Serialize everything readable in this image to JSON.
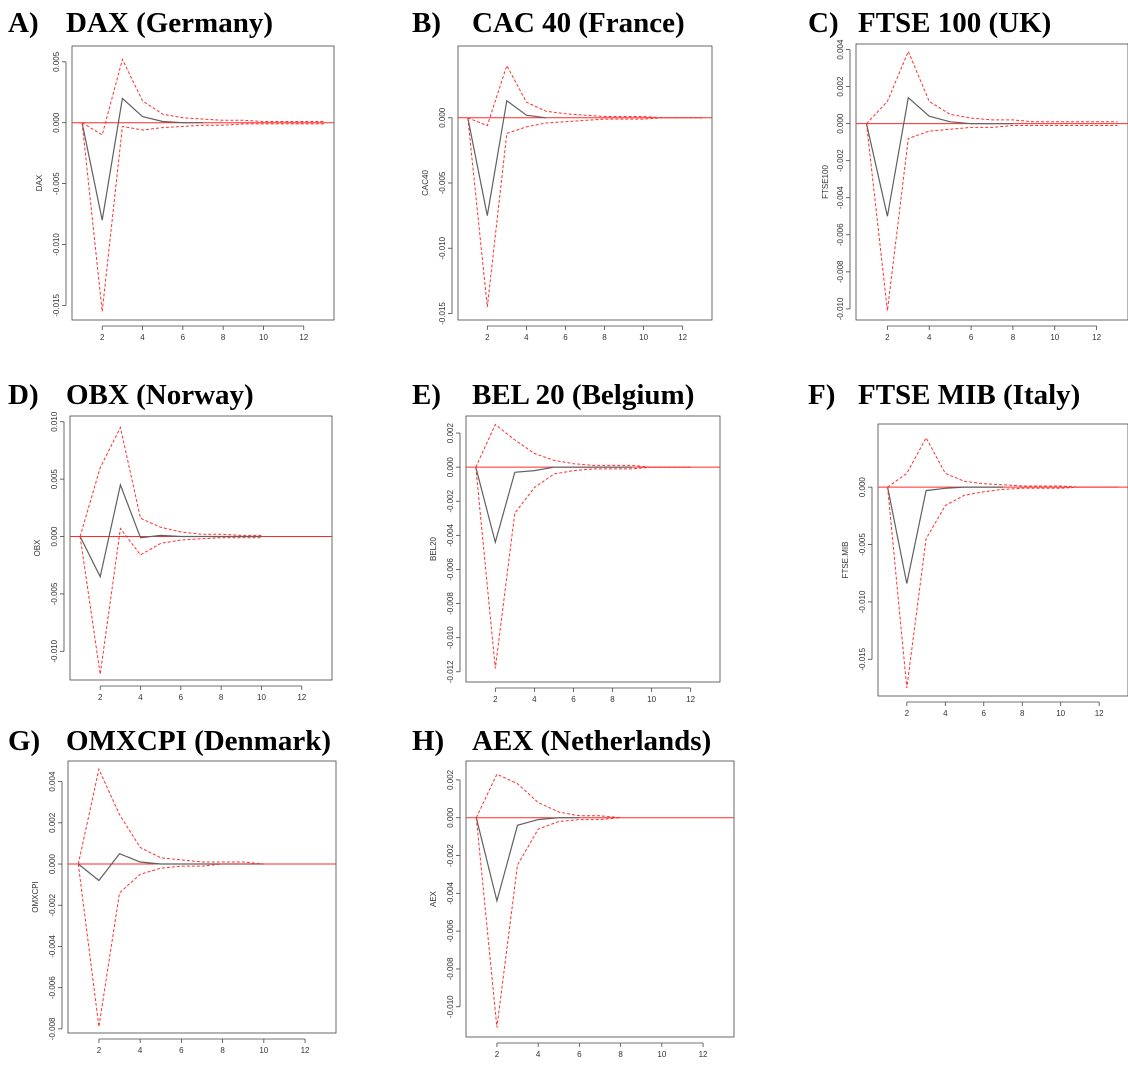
{
  "figure": {
    "panels": [
      {
        "letter": "A)",
        "title": "DAX (Germany)"
      },
      {
        "letter": "B)",
        "title": "CAC 40 (France)"
      },
      {
        "letter": "C)",
        "title": "FTSE 100 (UK)"
      },
      {
        "letter": "D)",
        "title": "OBX (Norway)"
      },
      {
        "letter": "E)",
        "title": "BEL 20 (Belgium)"
      },
      {
        "letter": "F)",
        "title": "FTSE MIB (Italy)"
      },
      {
        "letter": "G)",
        "title": "OMXCPI (Denmark)"
      },
      {
        "letter": "H)",
        "title": "AEX (Netherlands)"
      }
    ]
  },
  "colors": {
    "response": "#606060",
    "band": "#ff3030",
    "zero_line": "#ff2a2a",
    "frame": "#444444"
  },
  "chart_data": [
    {
      "type": "line",
      "title": "DAX (Germany)",
      "ylabel": "DAX",
      "xlabel": "",
      "xlim": [
        0.5,
        13.5
      ],
      "ylim": [
        -0.0162,
        0.0063
      ],
      "x_ticks": [
        2,
        4,
        6,
        8,
        10,
        12
      ],
      "y_ticks": [
        0.005,
        0.0,
        -0.005,
        -0.01,
        -0.015
      ],
      "y_tick_labels": [
        "0.005",
        "0.000",
        "-0.005",
        "-0.010",
        "-0.015"
      ],
      "zero_line": true,
      "grid": false,
      "x": [
        1,
        2,
        3,
        4,
        5,
        6,
        7,
        8,
        9,
        10,
        11,
        12,
        13
      ],
      "series": [
        {
          "role": "response",
          "values": [
            0,
            -0.008,
            0.002,
            0.0005,
            0.0001,
            0.0,
            0.0,
            null,
            null,
            null,
            null,
            null,
            null
          ]
        },
        {
          "role": "upper",
          "values": [
            0,
            -0.001,
            0.0052,
            0.0018,
            0.0007,
            0.0004,
            0.0003,
            0.0002,
            0.0002,
            0.0001,
            0.0001,
            0.0001,
            0.0001
          ]
        },
        {
          "role": "lower",
          "values": [
            0,
            -0.0155,
            -0.0003,
            -0.0006,
            -0.0004,
            -0.0003,
            -0.0002,
            -0.0002,
            -0.0001,
            -0.0001,
            -0.0001,
            -0.0001,
            -0.0001
          ]
        }
      ]
    },
    {
      "type": "line",
      "title": "CAC 40 (France)",
      "ylabel": "CAC40",
      "xlabel": "",
      "xlim": [
        0.5,
        13.5
      ],
      "ylim": [
        -0.0155,
        0.0055
      ],
      "x_ticks": [
        2,
        4,
        6,
        8,
        10,
        12
      ],
      "y_ticks": [
        0.0,
        -0.005,
        -0.01,
        -0.015
      ],
      "y_tick_labels": [
        "0.000",
        "-0.005",
        "-0.010",
        "-0.015"
      ],
      "zero_line": true,
      "grid": false,
      "x": [
        1,
        2,
        3,
        4,
        5,
        6,
        7,
        8,
        9,
        10,
        11,
        12,
        13
      ],
      "series": [
        {
          "role": "response",
          "values": [
            0,
            -0.0075,
            0.0013,
            0.0002,
            0.0,
            null,
            null,
            null,
            null,
            null,
            null,
            null,
            null
          ]
        },
        {
          "role": "upper",
          "values": [
            0,
            -0.0006,
            0.004,
            0.0012,
            0.0005,
            0.0003,
            0.0002,
            0.0001,
            0.0001,
            0.0001,
            0.0,
            0.0,
            0.0
          ]
        },
        {
          "role": "lower",
          "values": [
            0,
            -0.0145,
            -0.0012,
            -0.0007,
            -0.0004,
            -0.0003,
            -0.0002,
            -0.0001,
            -0.0001,
            -0.0001,
            0.0,
            0.0,
            0.0
          ]
        }
      ]
    },
    {
      "type": "line",
      "title": "FTSE 100 (UK)",
      "ylabel": "FTSE100",
      "xlabel": "",
      "xlim": [
        0.5,
        13.5
      ],
      "ylim": [
        -0.0106,
        0.0043
      ],
      "x_ticks": [
        2,
        4,
        6,
        8,
        10,
        12
      ],
      "y_ticks": [
        0.004,
        0.002,
        0.0,
        -0.002,
        -0.004,
        -0.006,
        -0.008,
        -0.01
      ],
      "y_tick_labels": [
        "0.004",
        "0.002",
        "0.000",
        "-0.002",
        "-0.004",
        "-0.006",
        "-0.008",
        "-0.010"
      ],
      "zero_line": true,
      "grid": false,
      "x": [
        1,
        2,
        3,
        4,
        5,
        6,
        7,
        8,
        9,
        10,
        11,
        12,
        13
      ],
      "series": [
        {
          "role": "response",
          "values": [
            0,
            -0.005,
            0.0014,
            0.0004,
            0.0001,
            0.0,
            0.0,
            0.0,
            null,
            null,
            null,
            null,
            null
          ]
        },
        {
          "role": "upper",
          "values": [
            0,
            0.0012,
            0.0039,
            0.0012,
            0.0005,
            0.0003,
            0.0002,
            0.0002,
            0.0001,
            0.0001,
            0.0001,
            0.0001,
            0.0001
          ]
        },
        {
          "role": "lower",
          "values": [
            0,
            -0.0101,
            -0.0008,
            -0.0004,
            -0.0003,
            -0.0002,
            -0.0002,
            -0.0001,
            -0.0001,
            -0.0001,
            -0.0001,
            -0.0001,
            -0.0001
          ]
        }
      ]
    },
    {
      "type": "line",
      "title": "OBX (Norway)",
      "ylabel": "OBX",
      "xlabel": "",
      "xlim": [
        0.5,
        13.5
      ],
      "ylim": [
        -0.0125,
        0.0105
      ],
      "x_ticks": [
        2,
        4,
        6,
        8,
        10,
        12
      ],
      "y_ticks": [
        0.01,
        0.005,
        0.0,
        -0.005,
        -0.01
      ],
      "y_tick_labels": [
        "0.010",
        "0.005",
        "0.000",
        "-0.005",
        "-0.010"
      ],
      "zero_line": true,
      "grid": false,
      "x": [
        1,
        2,
        3,
        4,
        5,
        6,
        7,
        8,
        9,
        10,
        11,
        12,
        13
      ],
      "series": [
        {
          "role": "response",
          "values": [
            0,
            -0.0035,
            0.0045,
            -0.0001,
            0.0001,
            0.0,
            0.0,
            0.0,
            0.0,
            0.0,
            null,
            null,
            null
          ]
        },
        {
          "role": "upper",
          "values": [
            0,
            0.006,
            0.0095,
            0.0016,
            0.0008,
            0.0004,
            0.0002,
            0.0002,
            0.0001,
            0.0001,
            null,
            null,
            null
          ]
        },
        {
          "role": "lower",
          "values": [
            0,
            -0.012,
            0.0007,
            -0.0016,
            -0.0006,
            -0.0003,
            -0.0002,
            -0.0001,
            -0.0001,
            -0.0001,
            null,
            null,
            null
          ]
        }
      ]
    },
    {
      "type": "line",
      "title": "BEL 20 (Belgium)",
      "ylabel": "BEL20",
      "xlabel": "",
      "xlim": [
        0.5,
        13.5
      ],
      "ylim": [
        -0.0126,
        0.003
      ],
      "x_ticks": [
        2,
        4,
        6,
        8,
        10,
        12
      ],
      "y_ticks": [
        0.002,
        0.0,
        -0.002,
        -0.004,
        -0.006,
        -0.008,
        -0.01,
        -0.012
      ],
      "y_tick_labels": [
        "0.002",
        "0.000",
        "-0.002",
        "-0.004",
        "-0.006",
        "-0.008",
        "-0.010",
        "-0.012"
      ],
      "zero_line": true,
      "grid": false,
      "x": [
        1,
        2,
        3,
        4,
        5,
        6,
        7,
        8,
        9,
        10,
        11,
        12,
        13
      ],
      "series": [
        {
          "role": "response",
          "values": [
            0,
            -0.0044,
            -0.0003,
            -0.0002,
            0.0,
            0.0,
            0.0,
            0.0,
            0.0,
            null,
            null,
            null,
            null
          ]
        },
        {
          "role": "upper",
          "values": [
            0,
            0.0025,
            0.0016,
            0.0008,
            0.0004,
            0.0002,
            0.0001,
            0.0001,
            0.0001,
            0.0,
            0.0,
            0.0,
            null
          ]
        },
        {
          "role": "lower",
          "values": [
            0,
            -0.0118,
            -0.0027,
            -0.0012,
            -0.0004,
            -0.0002,
            -0.0001,
            -0.0001,
            -0.0001,
            0.0,
            0.0,
            0.0,
            null
          ]
        }
      ]
    },
    {
      "type": "line",
      "title": "FTSE MIB (Italy)",
      "ylabel": "FTSE.MIB",
      "xlabel": "",
      "xlim": [
        0.5,
        13.5
      ],
      "ylim": [
        -0.0182,
        0.0055
      ],
      "x_ticks": [
        2,
        4,
        6,
        8,
        10,
        12
      ],
      "y_ticks": [
        0.0,
        -0.005,
        -0.01,
        -0.015
      ],
      "y_tick_labels": [
        "0.000",
        "-0.005",
        "-0.010",
        "-0.015"
      ],
      "zero_line": true,
      "grid": false,
      "x": [
        1,
        2,
        3,
        4,
        5,
        6,
        7,
        8,
        9,
        10,
        11,
        12,
        13
      ],
      "series": [
        {
          "role": "response",
          "values": [
            0,
            -0.0084,
            -0.0003,
            -0.0001,
            0.0,
            0.0,
            0.0,
            null,
            null,
            null,
            null,
            null,
            null
          ]
        },
        {
          "role": "upper",
          "values": [
            0,
            0.0012,
            0.0043,
            0.0012,
            0.0005,
            0.0003,
            0.0002,
            0.0001,
            0.0001,
            0.0001,
            0.0,
            0.0,
            0.0
          ]
        },
        {
          "role": "lower",
          "values": [
            0,
            -0.0175,
            -0.0045,
            -0.0016,
            -0.0007,
            -0.0004,
            -0.0002,
            -0.0001,
            -0.0001,
            -0.0001,
            0.0,
            0.0,
            0.0
          ]
        }
      ]
    },
    {
      "type": "line",
      "title": "OMXCPI (Denmark)",
      "ylabel": "OMXCPI",
      "xlabel": "",
      "xlim": [
        0.5,
        13.5
      ],
      "ylim": [
        -0.0082,
        0.005
      ],
      "x_ticks": [
        2,
        4,
        6,
        8,
        10,
        12
      ],
      "y_ticks": [
        0.004,
        0.002,
        0.0,
        -0.002,
        -0.004,
        -0.006,
        -0.008
      ],
      "y_tick_labels": [
        "0.004",
        "0.002",
        "0.000",
        "-0.002",
        "-0.004",
        "-0.006",
        "-0.008"
      ],
      "zero_line": true,
      "grid": false,
      "x": [
        1,
        2,
        3,
        4,
        5,
        6,
        7,
        8,
        9,
        10,
        11,
        12,
        13
      ],
      "series": [
        {
          "role": "response",
          "values": [
            0,
            -0.0008,
            0.0005,
            0.0001,
            0.0,
            0.0,
            0.0,
            0.0,
            0.0,
            0.0,
            null,
            null,
            null
          ]
        },
        {
          "role": "upper",
          "values": [
            0,
            0.0046,
            0.0024,
            0.0008,
            0.0003,
            0.0002,
            0.0001,
            0.0001,
            0.0001,
            0.0,
            null,
            null,
            null
          ]
        },
        {
          "role": "lower",
          "values": [
            0,
            -0.0079,
            -0.0014,
            -0.0005,
            -0.0002,
            -0.0001,
            -0.0001,
            0.0,
            0.0,
            0.0,
            null,
            null,
            null
          ]
        }
      ]
    },
    {
      "type": "line",
      "title": "AEX (Netherlands)",
      "ylabel": "AEX",
      "xlabel": "",
      "xlim": [
        0.5,
        13.5
      ],
      "ylim": [
        -0.0116,
        0.003
      ],
      "x_ticks": [
        2,
        4,
        6,
        8,
        10,
        12
      ],
      "y_ticks": [
        0.002,
        0.0,
        -0.002,
        -0.004,
        -0.006,
        -0.008,
        -0.01
      ],
      "y_tick_labels": [
        "0.002",
        "0.000",
        "-0.002",
        "-0.004",
        "-0.006",
        "-0.008",
        "-0.010"
      ],
      "zero_line": true,
      "grid": false,
      "x": [
        1,
        2,
        3,
        4,
        5,
        6,
        7,
        8,
        9,
        10,
        11,
        12,
        13
      ],
      "series": [
        {
          "role": "response",
          "values": [
            0,
            -0.0044,
            -0.0004,
            -0.0001,
            0.0,
            0.0,
            null,
            null,
            null,
            null,
            null,
            null,
            null
          ]
        },
        {
          "role": "upper",
          "values": [
            0,
            0.0023,
            0.0018,
            0.0008,
            0.0003,
            0.0001,
            0.0001,
            0.0,
            null,
            null,
            null,
            null,
            null
          ]
        },
        {
          "role": "lower",
          "values": [
            0,
            -0.0111,
            -0.0025,
            -0.0006,
            -0.0002,
            -0.0001,
            -0.0001,
            0.0,
            null,
            null,
            null,
            null,
            null
          ]
        }
      ]
    }
  ]
}
